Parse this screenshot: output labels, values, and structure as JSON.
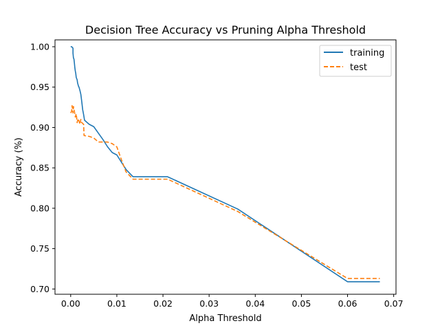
{
  "chart_data": {
    "type": "line",
    "title": "Decision Tree Accuracy vs Pruning Alpha Threshold",
    "xlabel": "Alpha Threshold",
    "ylabel": "Accuracy (%)",
    "xlim": [
      -0.0034,
      0.0705
    ],
    "ylim": [
      0.6935,
      1.0085
    ],
    "xticks": [
      0.0,
      0.01,
      0.02,
      0.03,
      0.04,
      0.05,
      0.06,
      0.07
    ],
    "xtick_labels": [
      "0.00",
      "0.01",
      "0.02",
      "0.03",
      "0.04",
      "0.05",
      "0.06",
      "0.07"
    ],
    "yticks": [
      0.7,
      0.75,
      0.8,
      0.85,
      0.9,
      0.95,
      1.0
    ],
    "ytick_labels": [
      "0.70",
      "0.75",
      "0.80",
      "0.85",
      "0.90",
      "0.95",
      "1.00"
    ],
    "grid": false,
    "legend": {
      "placement": "top-right"
    },
    "series": [
      {
        "name": "training",
        "color": "#1f77b4",
        "linestyle": "solid",
        "points": [
          [
            0.0,
            1.0
          ],
          [
            0.0002,
            1.0
          ],
          [
            0.0004,
            0.999
          ],
          [
            0.0005,
            0.998
          ],
          [
            0.0005,
            0.992
          ],
          [
            0.0006,
            0.986
          ],
          [
            0.0007,
            0.985
          ],
          [
            0.0008,
            0.98
          ],
          [
            0.0009,
            0.974
          ],
          [
            0.001,
            0.97
          ],
          [
            0.0011,
            0.967
          ],
          [
            0.0012,
            0.962
          ],
          [
            0.0014,
            0.959
          ],
          [
            0.0015,
            0.955
          ],
          [
            0.0017,
            0.951
          ],
          [
            0.0018,
            0.95
          ],
          [
            0.002,
            0.946
          ],
          [
            0.0022,
            0.941
          ],
          [
            0.0024,
            0.932
          ],
          [
            0.0026,
            0.922
          ],
          [
            0.0028,
            0.916
          ],
          [
            0.003,
            0.909
          ],
          [
            0.004,
            0.904
          ],
          [
            0.005,
            0.901
          ],
          [
            0.006,
            0.893
          ],
          [
            0.007,
            0.885
          ],
          [
            0.008,
            0.876
          ],
          [
            0.009,
            0.869
          ],
          [
            0.01,
            0.866
          ],
          [
            0.011,
            0.857
          ],
          [
            0.012,
            0.848
          ],
          [
            0.0135,
            0.839
          ],
          [
            0.021,
            0.839
          ],
          [
            0.0362,
            0.799
          ],
          [
            0.06,
            0.709
          ],
          [
            0.067,
            0.709
          ]
        ]
      },
      {
        "name": "test",
        "color": "#ff7f0e",
        "linestyle": "dashed",
        "points": [
          [
            0.0,
            0.918
          ],
          [
            0.0002,
            0.92
          ],
          [
            0.0003,
            0.927
          ],
          [
            0.0005,
            0.918
          ],
          [
            0.0006,
            0.926
          ],
          [
            0.0008,
            0.92
          ],
          [
            0.001,
            0.913
          ],
          [
            0.0012,
            0.917
          ],
          [
            0.0014,
            0.906
          ],
          [
            0.0016,
            0.911
          ],
          [
            0.0018,
            0.908
          ],
          [
            0.002,
            0.904
          ],
          [
            0.0022,
            0.91
          ],
          [
            0.0024,
            0.906
          ],
          [
            0.0026,
            0.905
          ],
          [
            0.0028,
            0.904
          ],
          [
            0.0029,
            0.89
          ],
          [
            0.004,
            0.889
          ],
          [
            0.005,
            0.887
          ],
          [
            0.006,
            0.882
          ],
          [
            0.008,
            0.882
          ],
          [
            0.009,
            0.88
          ],
          [
            0.01,
            0.876
          ],
          [
            0.011,
            0.86
          ],
          [
            0.012,
            0.845
          ],
          [
            0.0135,
            0.836
          ],
          [
            0.021,
            0.836
          ],
          [
            0.0362,
            0.796
          ],
          [
            0.06,
            0.713
          ],
          [
            0.067,
            0.713
          ]
        ]
      }
    ]
  }
}
